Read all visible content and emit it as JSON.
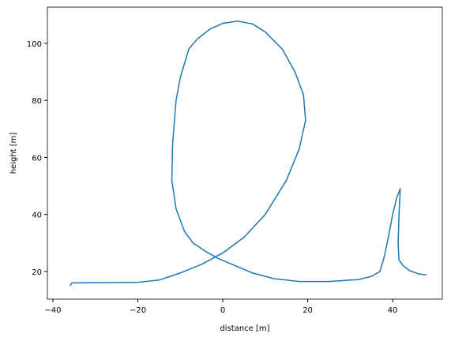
{
  "chart_data": {
    "type": "line",
    "xlabel": "distance [m]",
    "ylabel": "height [m]",
    "xlim": [
      -41.3,
      51.7
    ],
    "ylim": [
      10.3,
      112.7
    ],
    "xticks": [
      {
        "value": -40,
        "label": "−40"
      },
      {
        "value": -20,
        "label": "−20"
      },
      0,
      20,
      40
    ],
    "yticks": [
      20,
      40,
      60,
      80,
      100
    ],
    "series": [
      {
        "color": "#1f77b4",
        "x": [
          -36,
          -35.5,
          -20,
          -15,
          -10,
          -5,
          0,
          5,
          10,
          15,
          18,
          19.5,
          19,
          17,
          14,
          10,
          7,
          3.5,
          0,
          -3,
          -6,
          -8,
          -10,
          -11,
          -11.8,
          -12,
          -11,
          -9,
          -7,
          -4,
          -1,
          3,
          7,
          12,
          18,
          25,
          32,
          35,
          37,
          38,
          39,
          40,
          41,
          41.8,
          41.5,
          41.3,
          41.5,
          42.5,
          44,
          46,
          48
        ],
        "values": [
          15,
          16,
          16.2,
          17,
          19.5,
          22.5,
          26.5,
          32,
          40,
          52,
          63,
          73,
          82,
          90,
          98,
          104,
          106.8,
          107.8,
          107,
          105,
          101.5,
          98,
          88,
          80,
          65,
          52,
          42,
          34,
          30,
          27,
          24.5,
          22,
          19.5,
          17.5,
          16.5,
          16.5,
          17.2,
          18.3,
          20,
          25,
          32,
          40,
          46,
          49,
          40,
          30,
          24,
          22,
          20.3,
          19.2,
          18.8
        ]
      }
    ]
  }
}
